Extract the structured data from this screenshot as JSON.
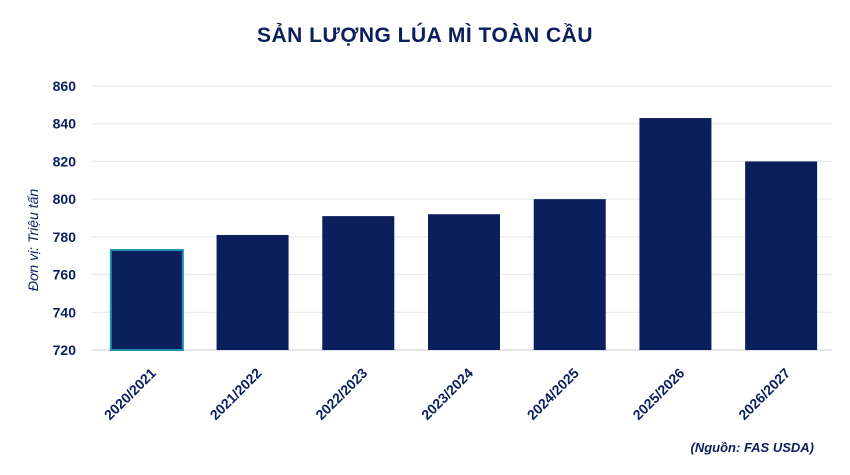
{
  "chart_data": {
    "type": "bar",
    "title": "SẢN LƯỢNG LÚA MÌ TOÀN CẦU",
    "ylabel": "Đơn vị: Triệu tấn",
    "xlabel": "",
    "categories": [
      "2020/2021",
      "2021/2022",
      "2022/2023",
      "2023/2024",
      "2024/2025",
      "2025/2026",
      "2026/2027"
    ],
    "values": [
      773,
      781,
      791,
      792,
      800,
      843,
      820
    ],
    "ylim": [
      720,
      860
    ],
    "yticks": [
      720,
      740,
      760,
      780,
      800,
      820,
      840,
      860
    ],
    "grid": true,
    "bar_color": "#0b1f5c",
    "highlight_edge_color": "#1d8fb0",
    "source": "(Nguồn: FAS USDA)"
  }
}
